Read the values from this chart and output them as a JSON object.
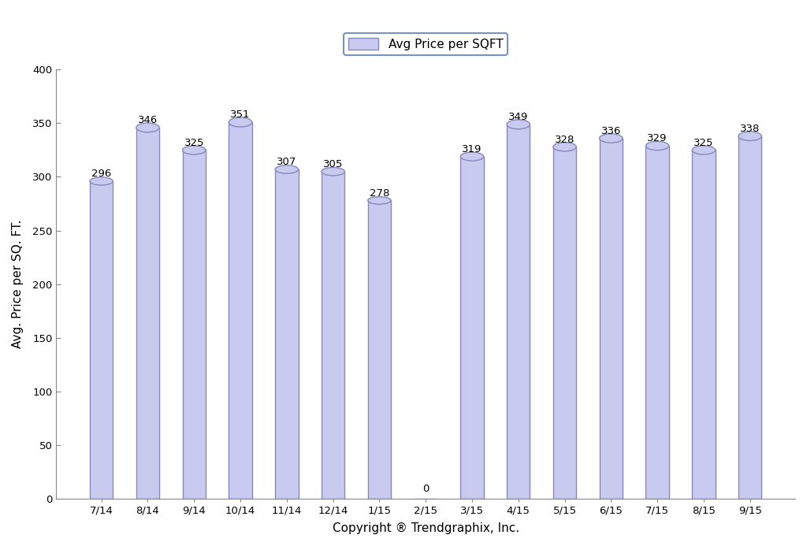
{
  "categories": [
    "7/14",
    "8/14",
    "9/14",
    "10/14",
    "11/14",
    "12/14",
    "1/15",
    "2/15",
    "3/15",
    "4/15",
    "5/15",
    "6/15",
    "7/15",
    "8/15",
    "9/15"
  ],
  "values": [
    296,
    346,
    325,
    351,
    307,
    305,
    278,
    0,
    319,
    349,
    328,
    336,
    329,
    325,
    338
  ],
  "bar_color": "#c8caf0",
  "bar_edgecolor": "#8888bb",
  "ylabel": "Avg. Price per SQ. FT.",
  "xlabel": "Copyright ® Trendgraphix, Inc.",
  "legend_label": "Avg Price per SQFT",
  "legend_edgecolor": "#5577bb",
  "ylim": [
    0,
    400
  ],
  "yticks": [
    0,
    50,
    100,
    150,
    200,
    250,
    300,
    350,
    400
  ],
  "background_color": "#ffffff",
  "label_fontsize": 9.5,
  "axis_label_fontsize": 11,
  "tick_fontsize": 9.5,
  "legend_fontsize": 11,
  "bar_width": 0.5
}
